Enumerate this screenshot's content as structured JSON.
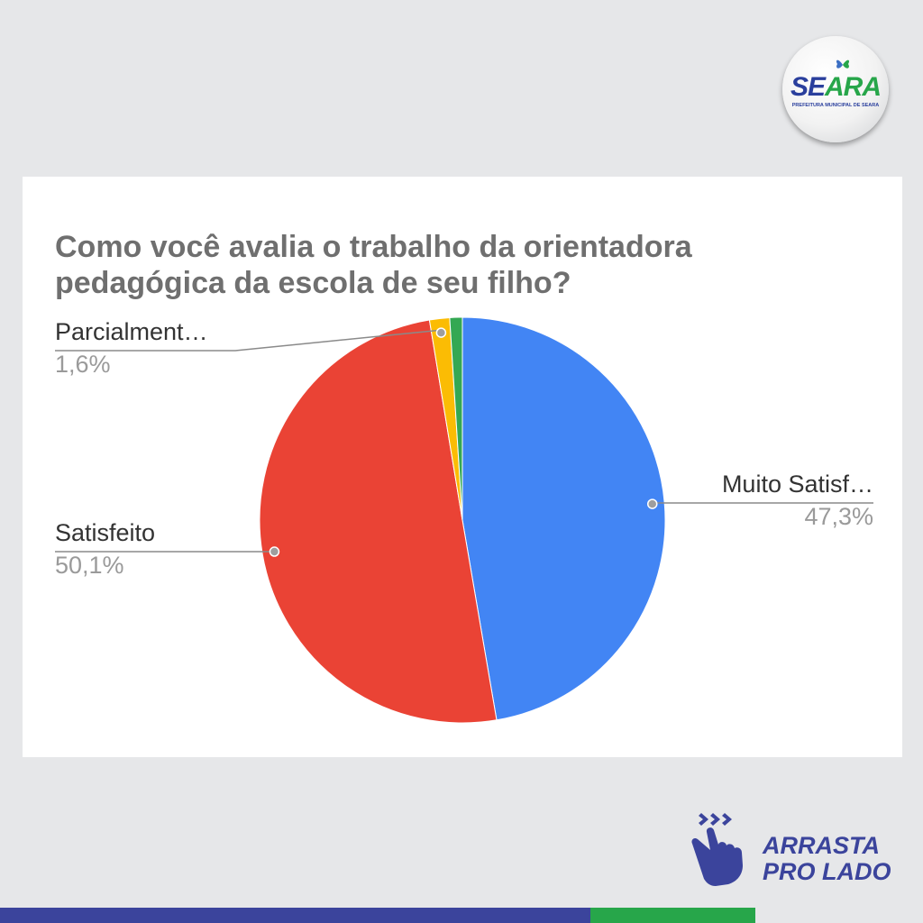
{
  "logo": {
    "word": "SEARA",
    "subtitle": "PREFEITURA MUNICIPAL DE SEARA"
  },
  "chart_data": {
    "type": "pie",
    "title": "Como você avalia o trabalho da orientadora pedagógica da escola de seu filho?",
    "slices": [
      {
        "label": "Muito Satisf…",
        "value": 47.3,
        "display": "47,3%",
        "color": "#4285f4"
      },
      {
        "label": "Satisfeito",
        "value": 50.1,
        "display": "50,1%",
        "color": "#ea4335"
      },
      {
        "label": "Parcialment…",
        "value": 1.6,
        "display": "1,6%",
        "color": "#fbbc04"
      },
      {
        "label": "",
        "value": 1.0,
        "display": "",
        "color": "#34a853"
      }
    ]
  },
  "swipe": {
    "line1": "ARRASTA",
    "line2": "PRO LADO",
    "color": "#3b449c"
  },
  "footer": {
    "blue": "#3b449c",
    "green": "#27a64a"
  }
}
